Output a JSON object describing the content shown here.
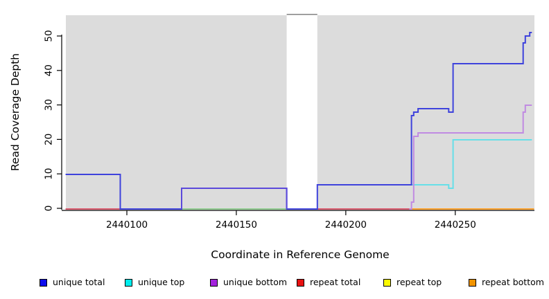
{
  "figure": {
    "xlabel": "Coordinate in Reference Genome",
    "ylabel": "Read Coverage Depth"
  },
  "legend": {
    "items": [
      {
        "label": "unique total",
        "color": "#0D0DEE"
      },
      {
        "label": "unique top",
        "color": "#00EDED"
      },
      {
        "label": "unique bottom",
        "color": "#A322DC"
      },
      {
        "label": "repeat total",
        "color": "#E81111"
      },
      {
        "label": "repeat top",
        "color": "#FAFA00"
      },
      {
        "label": "repeat bottom",
        "color": "#F29400"
      }
    ]
  },
  "chart_data": {
    "type": "line",
    "step": true,
    "title": "",
    "xlabel": "Coordinate in Reference Genome",
    "ylabel": "Read Coverage Depth",
    "xlim": [
      2440072,
      2440285
    ],
    "ylim": [
      0,
      56
    ],
    "x_ticks": [
      2440100,
      2440150,
      2440200,
      2440250
    ],
    "y_ticks": [
      0,
      10,
      20,
      30,
      40,
      50
    ],
    "background": "#DCDCDC",
    "grid": false,
    "legend_position": "bottom",
    "masked_region": {
      "start": 2440173,
      "end": 2440187
    },
    "series": [
      {
        "name": "unique total",
        "steps": [
          [
            2440072,
            10
          ],
          [
            2440097,
            0
          ],
          [
            2440125,
            6
          ],
          [
            2440173,
            0
          ],
          [
            2440187,
            7
          ],
          [
            2440230,
            27
          ],
          [
            2440231,
            28
          ],
          [
            2440233,
            29
          ],
          [
            2440247,
            28
          ],
          [
            2440249,
            42
          ],
          [
            2440281,
            48
          ],
          [
            2440282,
            50
          ],
          [
            2440284,
            51
          ]
        ],
        "end": 2440285
      },
      {
        "name": "unique top",
        "steps": [
          [
            2440230,
            7
          ],
          [
            2440247,
            6
          ],
          [
            2440249,
            20
          ]
        ],
        "end": 2440285
      },
      {
        "name": "unique bottom",
        "steps": [
          [
            2440229,
            0
          ],
          [
            2440230,
            2
          ],
          [
            2440231,
            21
          ],
          [
            2440233,
            22
          ],
          [
            2440281,
            28
          ],
          [
            2440282,
            30
          ]
        ],
        "end": 2440285
      },
      {
        "name": "repeat total",
        "steps": [
          [
            2440072,
            0
          ]
        ],
        "end": 2440230
      },
      {
        "name": "repeat top",
        "steps": [
          [
            2440072,
            0
          ]
        ],
        "end": 2440230
      },
      {
        "name": "repeat bottom",
        "steps": [
          [
            2440230,
            0
          ]
        ],
        "end": 2440285
      }
    ],
    "render_strokes": [
      {
        "name": "baseline-red-left",
        "color": "#D8566A",
        "pts": [
          [
            2440072,
            0
          ]
        ],
        "end": 2440097
      },
      {
        "name": "baseline-periwinkle",
        "color": "#9191EF",
        "pts": [
          [
            2440097,
            0
          ]
        ],
        "end": 2440125
      },
      {
        "name": "baseline-green",
        "color": "#8FCB8F",
        "pts": [
          [
            2440125,
            0
          ]
        ],
        "end": 2440173
      },
      {
        "name": "baseline-band",
        "color": "#5B49DB",
        "pts": [
          [
            2440173,
            0
          ]
        ],
        "end": 2440187
      },
      {
        "name": "baseline-red-right",
        "color": "#D8566A",
        "pts": [
          [
            2440187,
            0
          ]
        ],
        "end": 2440230
      },
      {
        "name": "repeat-bottom",
        "color": "#FC9E26",
        "pts": [
          [
            2440230,
            0
          ]
        ],
        "end": 2440286
      },
      {
        "name": "unique-top",
        "color": "#66DFE8",
        "pts": [
          [
            2440230,
            7
          ],
          [
            2440247,
            6
          ],
          [
            2440249,
            20
          ]
        ],
        "end": 2440285
      },
      {
        "name": "unique-bottom",
        "color": "#C08AE2",
        "pts": [
          [
            2440229,
            0
          ],
          [
            2440230,
            2
          ],
          [
            2440231,
            21
          ],
          [
            2440233,
            22
          ],
          [
            2440281,
            28
          ],
          [
            2440282,
            30
          ]
        ],
        "end": 2440285
      },
      {
        "name": "unique-total",
        "color": "#3E42DC",
        "pts": [
          [
            2440072,
            10
          ],
          [
            2440097,
            0
          ],
          [
            2440125,
            6
          ],
          [
            2440173,
            0
          ],
          [
            2440187,
            7
          ],
          [
            2440230,
            27
          ],
          [
            2440231,
            28
          ],
          [
            2440233,
            29
          ],
          [
            2440247,
            28
          ],
          [
            2440249,
            42
          ],
          [
            2440281,
            48
          ],
          [
            2440282,
            50
          ],
          [
            2440284,
            51
          ]
        ],
        "end": 2440285
      },
      {
        "name": "unique-total-violet-overlay",
        "color": "#5B49DB",
        "pts": [
          [
            2440125,
            0
          ],
          [
            2440125,
            6
          ],
          [
            2440173,
            0
          ]
        ],
        "end": 2440173
      }
    ]
  }
}
